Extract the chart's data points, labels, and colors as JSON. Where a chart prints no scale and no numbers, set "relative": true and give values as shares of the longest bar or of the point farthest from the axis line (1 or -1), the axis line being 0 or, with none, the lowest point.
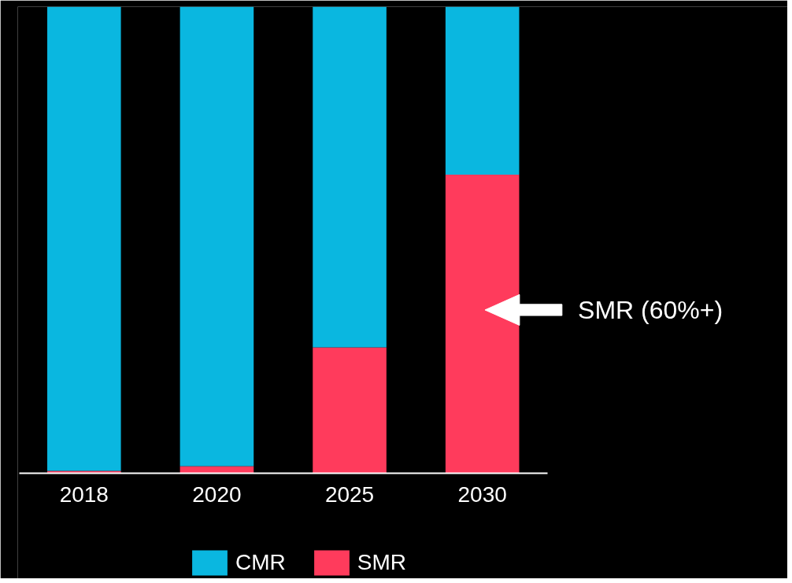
{
  "chart_data": {
    "type": "bar",
    "stacked": true,
    "relative": true,
    "categories": [
      "2018",
      "2020",
      "2025",
      "2030"
    ],
    "series": [
      {
        "name": "SMR",
        "color": "#ff3b5c",
        "values": [
          0.005,
          0.015,
          0.27,
          0.64
        ]
      },
      {
        "name": "CMR",
        "color": "#0ab7e0",
        "values": [
          0.995,
          0.985,
          0.73,
          0.36
        ]
      }
    ],
    "annotations": [
      "SMR (60%+)"
    ],
    "legend": "bottom",
    "grid": false
  }
}
